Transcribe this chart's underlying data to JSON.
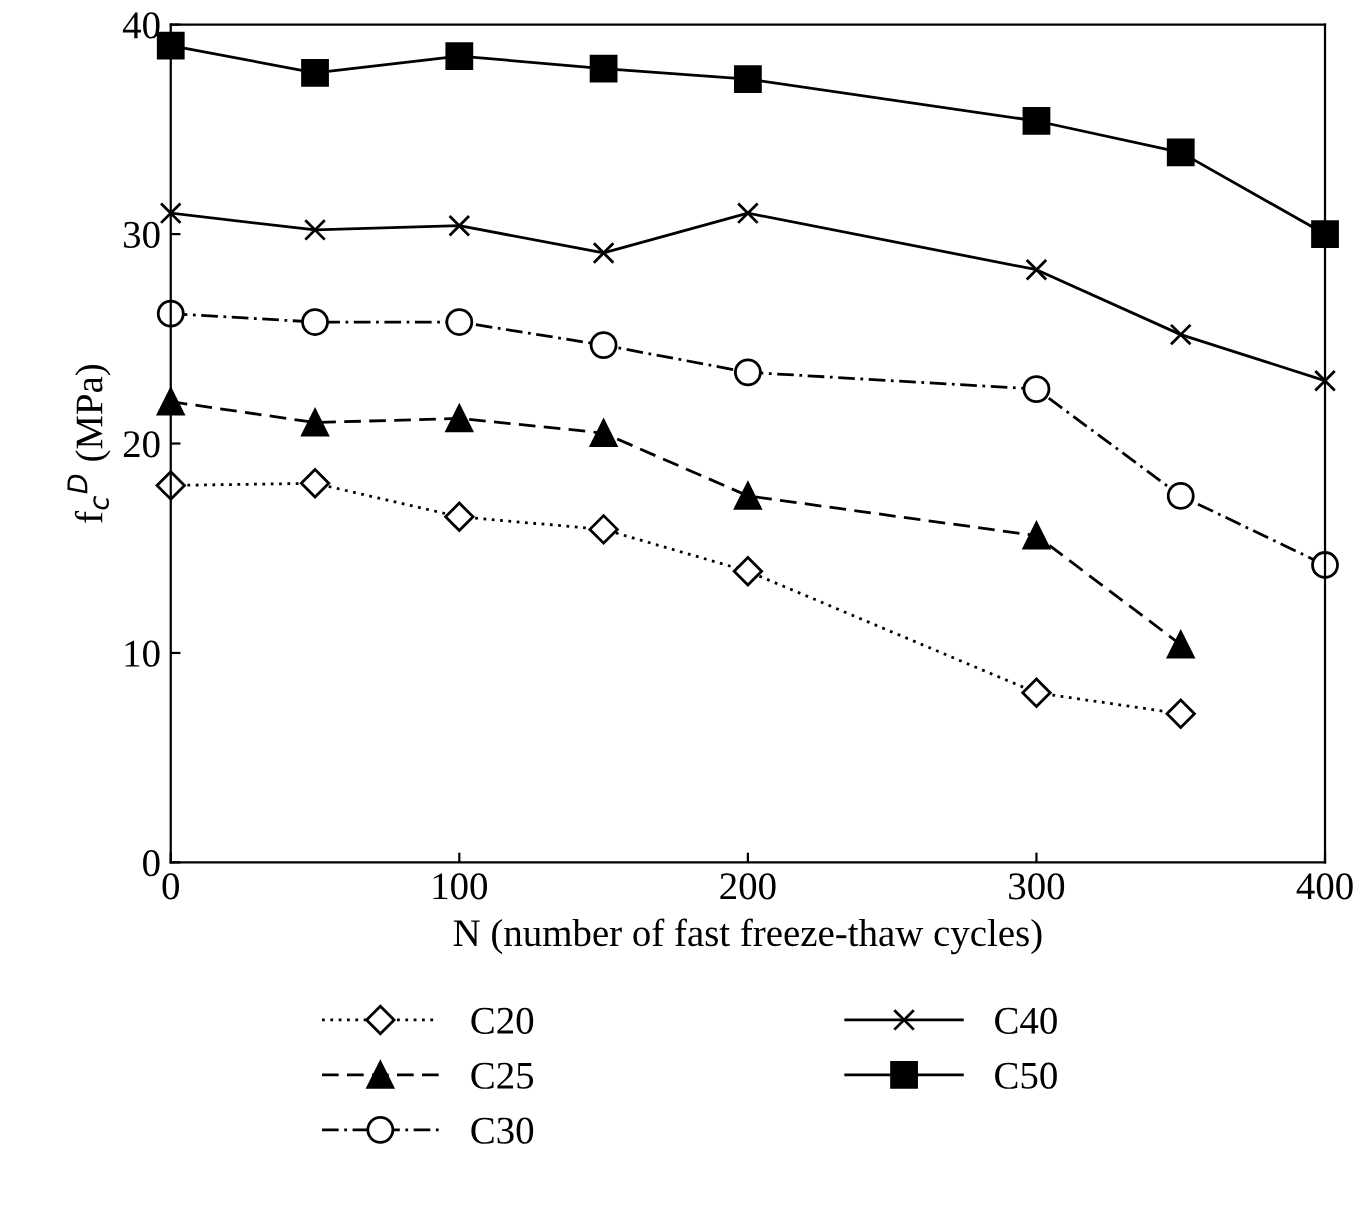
{
  "chart_data": {
    "type": "line",
    "xlabel": "N (number of fast freeze-thaw cycles)",
    "ylabel": "f$_{c}$$^{D}$ (MPa)",
    "xlim": [
      0,
      400
    ],
    "xticks": [
      0,
      100,
      200,
      300,
      400
    ],
    "ylim": [
      0,
      40
    ],
    "yticks": [
      0,
      10,
      20,
      30,
      40
    ],
    "grid": false,
    "legend": "bottom",
    "series": [
      {
        "name": "C20",
        "color": "#000000",
        "marker": "diamond",
        "line_style": "dotted",
        "x": [
          0,
          50,
          100,
          150,
          200,
          300,
          350
        ],
        "values": [
          18,
          18.1,
          16.5,
          15.9,
          13.9,
          8.1,
          7.1
        ]
      },
      {
        "name": "C25",
        "color": "#000000",
        "marker": "triangle",
        "line_style": "dashed",
        "x": [
          0,
          50,
          100,
          150,
          200,
          300,
          350
        ],
        "values": [
          22,
          21,
          21.2,
          20.5,
          17.5,
          15.6,
          10.4
        ]
      },
      {
        "name": "C30",
        "color": "#000000",
        "marker": "circle",
        "line_style": "dashdot",
        "x": [
          0,
          50,
          100,
          150,
          200,
          300,
          350,
          400
        ],
        "values": [
          26.2,
          25.8,
          25.8,
          24.7,
          23.4,
          22.6,
          17.5,
          14.2
        ]
      },
      {
        "name": "C40",
        "color": "#000000",
        "marker": "cross",
        "line_style": "solid",
        "x": [
          0,
          50,
          100,
          150,
          200,
          300,
          350,
          400
        ],
        "values": [
          31,
          30.2,
          30.4,
          29.1,
          31,
          28.3,
          25.2,
          23
        ]
      },
      {
        "name": "C50",
        "color": "#000000",
        "marker": "square",
        "line_style": "solid",
        "x": [
          0,
          50,
          100,
          150,
          200,
          300,
          350,
          400
        ],
        "values": [
          39,
          37.7,
          38.5,
          37.9,
          37.4,
          35.4,
          33.9,
          30
        ]
      }
    ]
  }
}
